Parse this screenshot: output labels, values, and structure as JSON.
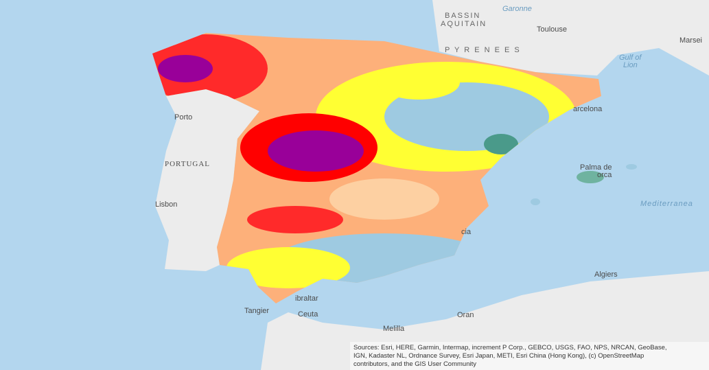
{
  "labels": [
    "BASSIN",
    "AQUITAIN",
    "Garonne",
    "Toulouse",
    "Marsei",
    "Gulf of",
    "Lion",
    "P Y R E N E E S",
    "Porto",
    "PORTUGAL",
    "Lisbon",
    "arcelona",
    "Palma de",
    "orca",
    "Mediterranea",
    "cia",
    "Algiers",
    "Oran",
    "Melilla",
    "Tangier",
    "Ceuta",
    "ibraltar"
  ],
  "attribution": [
    "Sources: Esri, HERE, Garmin, Intermap, increment P Corp., GEBCO, USGS, FAO, NPS, NRCAN, GeoBase,",
    "IGN, Kadaster NL, Ordnance Survey, Esri Japan, METI, Esri China (Hong Kong), (c) OpenStreetMap",
    "contributors, and the GIS User Community"
  ]
}
